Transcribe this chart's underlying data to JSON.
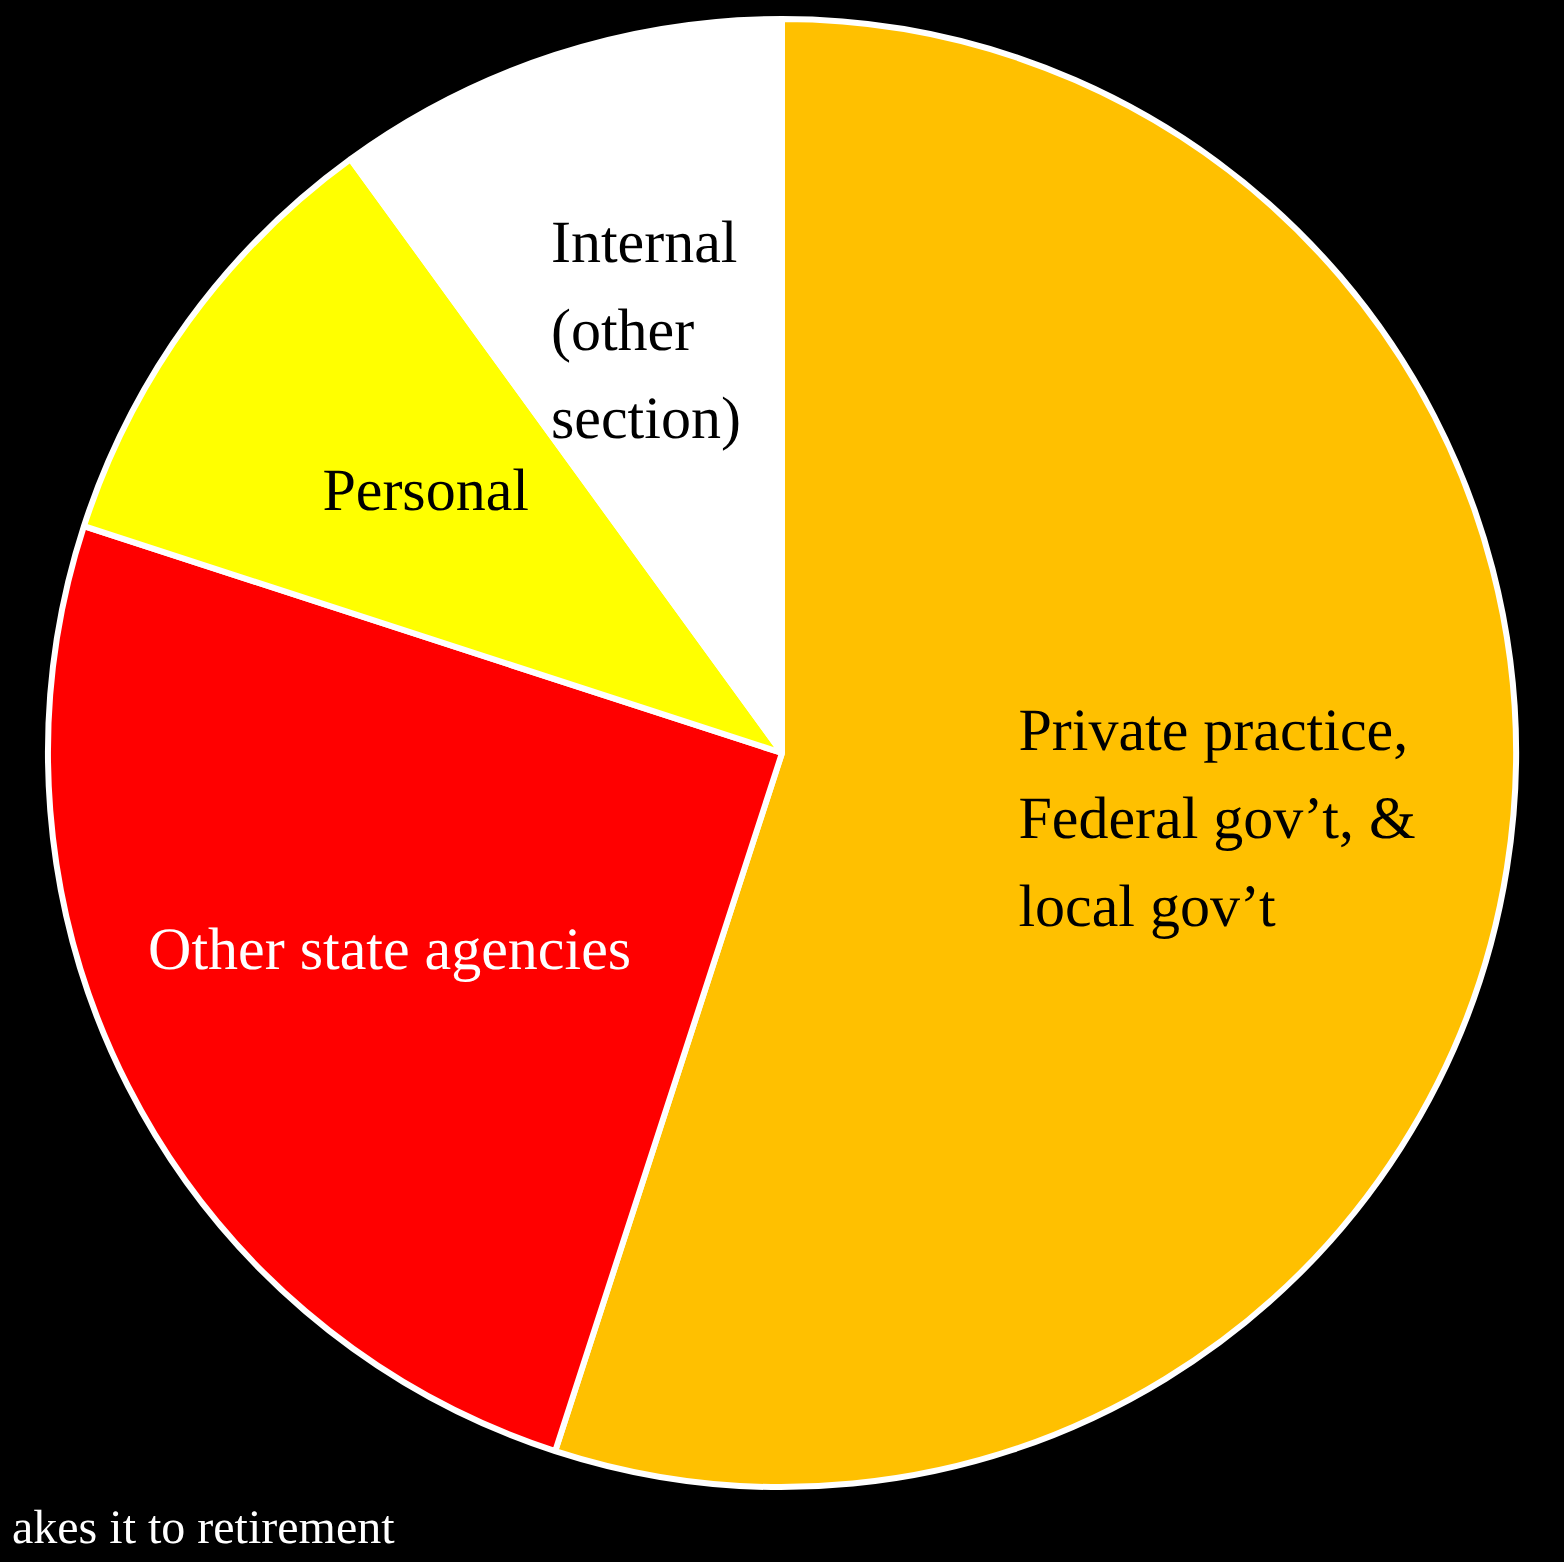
{
  "chart_data": {
    "type": "pie",
    "categories": [
      "Private practice, Federal gov’t, & local gov’t",
      "Other state agencies",
      "Personal",
      "Internal (other section)"
    ],
    "values": [
      55,
      25,
      10,
      10
    ],
    "colors": [
      "#ffc000",
      "#ff0000",
      "#ffff00",
      "#ffffff"
    ],
    "annotations": [
      "akes it to retirement"
    ]
  }
}
